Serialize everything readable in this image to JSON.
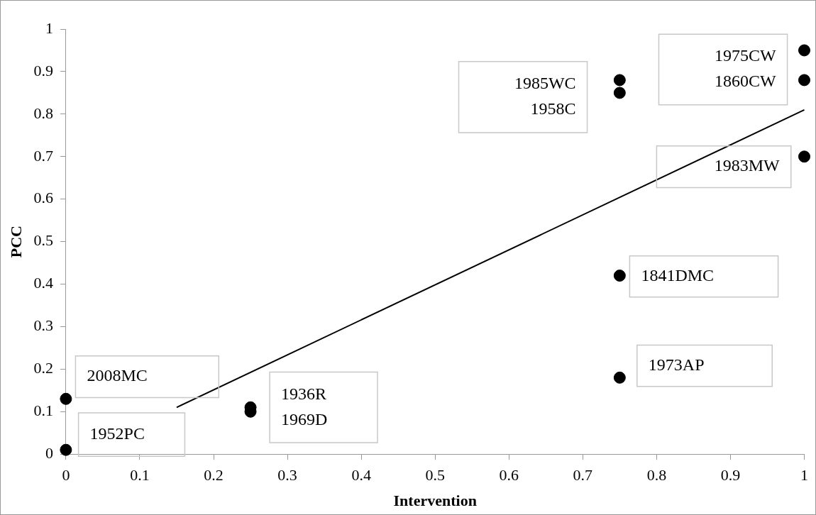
{
  "chart_data": {
    "type": "scatter",
    "xlabel": "Intervention",
    "ylabel": "PCC",
    "x": [
      0,
      0,
      0.25,
      0.25,
      0.75,
      0.75,
      0.75,
      0.75,
      1,
      1,
      1
    ],
    "series": [
      {
        "color": "#000000",
        "marker": "circle",
        "values": [
          0.13,
          0.01,
          0.11,
          0.1,
          0.88,
          0.85,
          0.42,
          0.18,
          0.95,
          0.88,
          0.7
        ]
      },
      {
        "type": "line",
        "color": "#000000",
        "marker": "none",
        "line_style": "solid",
        "x": [
          0.15,
          1
        ],
        "values": [
          0.11,
          0.81
        ]
      }
    ],
    "xlim": [
      0,
      1
    ],
    "xticks": [
      0,
      0.1,
      0.2,
      0.3,
      0.4,
      0.5,
      0.6,
      0.7,
      0.8,
      0.9,
      1
    ],
    "ylim": [
      0,
      1
    ],
    "yticks": [
      0,
      0.1,
      0.2,
      0.3,
      0.4,
      0.5,
      0.6,
      0.7,
      0.8,
      0.9,
      1
    ],
    "grid": false,
    "legend": false,
    "annotations": [
      {
        "text": "2008MC",
        "x": 0,
        "y": 0.13
      },
      {
        "text": "1952PC",
        "x": 0,
        "y": 0.01
      },
      {
        "text": "1936R\n1969D",
        "x": 0.25,
        "y": 0.11
      },
      {
        "text": "1985WC\n1958C",
        "x": 0.75,
        "y": 0.88
      },
      {
        "text": "1975CW\n1860CW",
        "x": 1,
        "y": 0.95
      },
      {
        "text": "1983MW",
        "x": 1,
        "y": 0.7
      },
      {
        "text": "1841DMC",
        "x": 0.75,
        "y": 0.42
      },
      {
        "text": "1973AP",
        "x": 0.75,
        "y": 0.18
      }
    ]
  }
}
